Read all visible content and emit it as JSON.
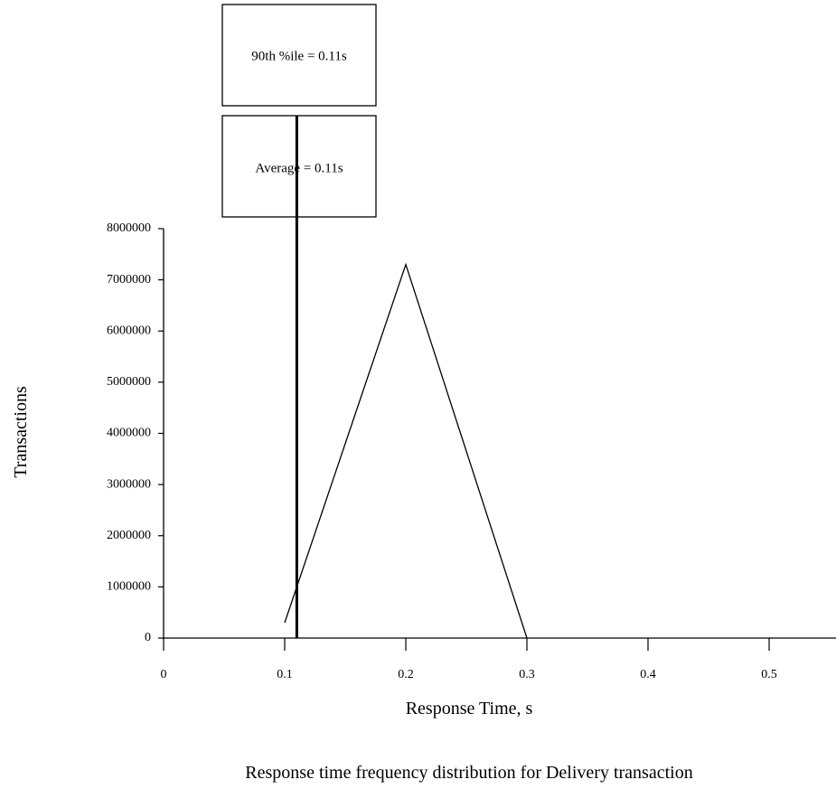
{
  "chart_data": {
    "type": "line",
    "title": "Response time frequency distribution for Delivery transaction",
    "xlabel": "Response Time, s",
    "ylabel": "Transactions",
    "x_ticks": [
      "0",
      "0.1",
      "0.2",
      "0.3",
      "0.4",
      "0.5"
    ],
    "y_ticks": [
      "0",
      "1000000",
      "2000000",
      "3000000",
      "4000000",
      "5000000",
      "6000000",
      "7000000",
      "8000000"
    ],
    "xlim": [
      0,
      0.55
    ],
    "ylim": [
      0,
      8000000
    ],
    "series": [
      {
        "x": [
          0.1,
          0.2,
          0.3
        ],
        "y": [
          300000,
          7300000,
          0
        ]
      }
    ],
    "markers": [
      {
        "label": "90th %ile = 0.11s",
        "x": 0.11
      },
      {
        "label": "Average = 0.11s",
        "x": 0.11
      }
    ],
    "grid": false,
    "legend": "none"
  }
}
